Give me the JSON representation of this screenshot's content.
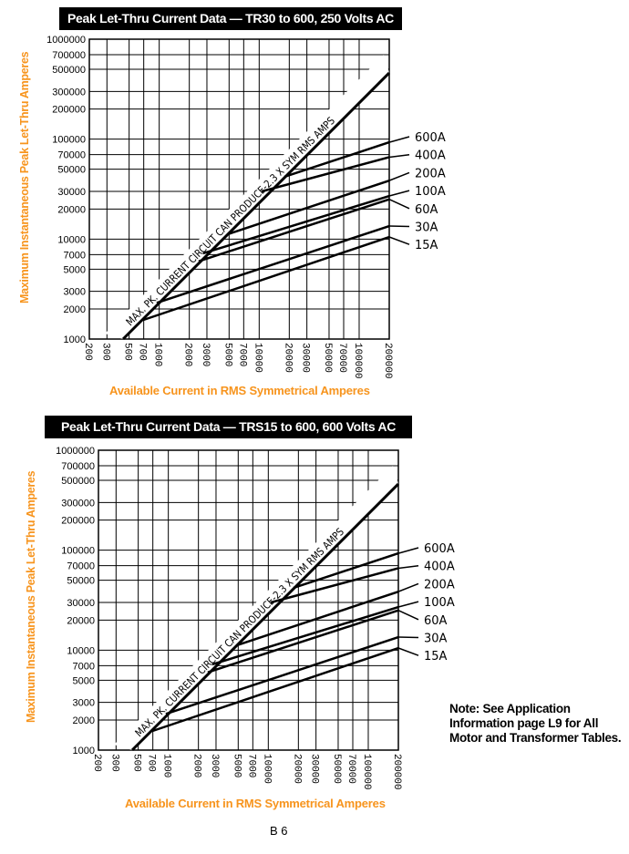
{
  "charts_common": {
    "ylabel": "Maximum Instantaneous Peak Let-Thru Amperes",
    "xlabel": "Available Current in RMS Symmetrical Amperes"
  },
  "note": [
    "Note: See Application",
    "Information page L9 for All",
    "Motor and Transformer Tables."
  ],
  "page_number": "B 6",
  "chart_data": [
    {
      "type": "line",
      "title": "Peak Let-Thru Current Data — TR30 to 600, 250 Volts AC",
      "xlabel": "Available Current in RMS Symmetrical Amperes",
      "ylabel": "Maximum Instantaneous Peak Let-Thru Amperes",
      "xscale": "log",
      "yscale": "log",
      "xlim": [
        200,
        200000
      ],
      "ylim": [
        1000,
        1000000
      ],
      "xticks": [
        "200",
        "300",
        "500",
        "700",
        "1000",
        "2000",
        "3000",
        "5000",
        "7000",
        "10000",
        "20000",
        "30000",
        "50000",
        "70000",
        "100000",
        "200000"
      ],
      "yticks": [
        "1000",
        "2000",
        "3000",
        "5000",
        "7000",
        "10000",
        "20000",
        "30000",
        "50000",
        "70000",
        "100000",
        "200000",
        "300000",
        "500000",
        "700000",
        "1000000"
      ],
      "grid": true,
      "annotation": "MAX. PK. CURRENT CIRCUIT CAN PRODUCE-2.3 X SYM RMS AMPS",
      "max_line": {
        "x": [
          435,
          200000
        ],
        "y": [
          1000,
          460000
        ]
      },
      "series": [
        {
          "name": "600A",
          "x": [
            17900,
            200000
          ],
          "y": [
            42000,
            93000
          ]
        },
        {
          "name": "400A",
          "x": [
            10600,
            200000
          ],
          "y": [
            30000,
            66000
          ]
        },
        {
          "name": "200A",
          "x": [
            4860,
            200000
          ],
          "y": [
            11200,
            38500
          ]
        },
        {
          "name": "100A",
          "x": [
            2750,
            200000
          ],
          "y": [
            7200,
            27000
          ]
        },
        {
          "name": "60A",
          "x": [
            2480,
            200000
          ],
          "y": [
            6000,
            25000
          ]
        },
        {
          "name": "30A",
          "x": [
            944,
            200000
          ],
          "y": [
            2300,
            13500
          ]
        },
        {
          "name": "15A",
          "x": [
            690,
            200000
          ],
          "y": [
            1550,
            10500
          ]
        }
      ]
    },
    {
      "type": "line",
      "title": "Peak Let-Thru Current Data — TRS15 to 600, 600 Volts AC",
      "xlabel": "Available Current in RMS Symmetrical Amperes",
      "ylabel": "Maximum Instantaneous Peak Let-Thru Amperes",
      "xscale": "log",
      "yscale": "log",
      "xlim": [
        200,
        200000
      ],
      "ylim": [
        1000,
        1000000
      ],
      "xticks": [
        "200",
        "300",
        "500",
        "700",
        "1000",
        "2000",
        "3000",
        "5000",
        "7000",
        "10000",
        "20000",
        "30000",
        "50000",
        "70000",
        "100000",
        "200000"
      ],
      "yticks": [
        "1000",
        "2000",
        "3000",
        "5000",
        "7000",
        "10000",
        "20000",
        "30000",
        "50000",
        "70000",
        "100000",
        "200000",
        "300000",
        "500000",
        "700000",
        "1000000"
      ],
      "grid": true,
      "annotation": "MAX. PK. CURRENT CIRCUIT CAN PRODUCE-2.3 X SYM RMS AMPS",
      "max_line": {
        "x": [
          435,
          200000
        ],
        "y": [
          1000,
          460000
        ]
      },
      "series": [
        {
          "name": "600A",
          "x": [
            17900,
            200000
          ],
          "y": [
            42000,
            93000
          ]
        },
        {
          "name": "400A",
          "x": [
            10600,
            200000
          ],
          "y": [
            30000,
            66000
          ]
        },
        {
          "name": "200A",
          "x": [
            4860,
            200000
          ],
          "y": [
            11200,
            38500
          ]
        },
        {
          "name": "100A",
          "x": [
            2750,
            200000
          ],
          "y": [
            7200,
            27000
          ]
        },
        {
          "name": "60A",
          "x": [
            2480,
            200000
          ],
          "y": [
            6000,
            25000
          ]
        },
        {
          "name": "30A",
          "x": [
            944,
            200000
          ],
          "y": [
            2300,
            13500
          ]
        },
        {
          "name": "15A",
          "x": [
            690,
            200000
          ],
          "y": [
            1550,
            10500
          ]
        }
      ]
    }
  ]
}
